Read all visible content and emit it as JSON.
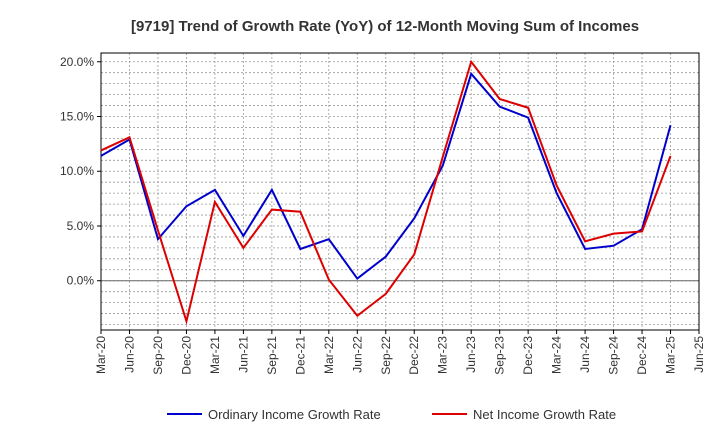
{
  "chart_data": {
    "type": "line",
    "title": "[9719]  Trend of Growth Rate (YoY) of 12-Month Moving Sum of Incomes",
    "xlabel": "",
    "ylabel": "",
    "x": [
      "Mar-20",
      "Jun-20",
      "Sep-20",
      "Dec-20",
      "Mar-21",
      "Jun-21",
      "Sep-21",
      "Dec-21",
      "Mar-22",
      "Jun-22",
      "Sep-22",
      "Dec-22",
      "Mar-23",
      "Jun-23",
      "Sep-23",
      "Dec-23",
      "Mar-24",
      "Jun-24",
      "Sep-24",
      "Dec-24",
      "Mar-25",
      "Jun-25"
    ],
    "y_ticks": [
      {
        "value": 20,
        "label": "20.0%"
      },
      {
        "value": 15,
        "label": "15.0%"
      },
      {
        "value": 10,
        "label": "10.0%"
      },
      {
        "value": 5,
        "label": "5.0%"
      },
      {
        "value": 0,
        "label": "0.0%"
      }
    ],
    "ylim": [
      -4.5,
      20.8
    ],
    "grid": true,
    "legend_position": "bottom",
    "series": [
      {
        "name": "Ordinary Income Growth Rate",
        "color": "#0000cc",
        "values": [
          11.4,
          12.9,
          3.8,
          6.8,
          8.3,
          4.1,
          8.3,
          2.9,
          3.8,
          0.2,
          2.2,
          5.7,
          10.5,
          18.9,
          15.9,
          14.9,
          8.0,
          2.9,
          3.2,
          4.7,
          14.2,
          null
        ]
      },
      {
        "name": "Net Income Growth Rate",
        "color": "#dd0000",
        "values": [
          11.9,
          13.1,
          4.6,
          -3.7,
          7.2,
          3.0,
          6.5,
          6.3,
          0.1,
          -3.2,
          -1.2,
          2.4,
          11.3,
          20.0,
          16.6,
          15.8,
          8.7,
          3.6,
          4.3,
          4.5,
          11.4,
          null
        ]
      }
    ]
  }
}
